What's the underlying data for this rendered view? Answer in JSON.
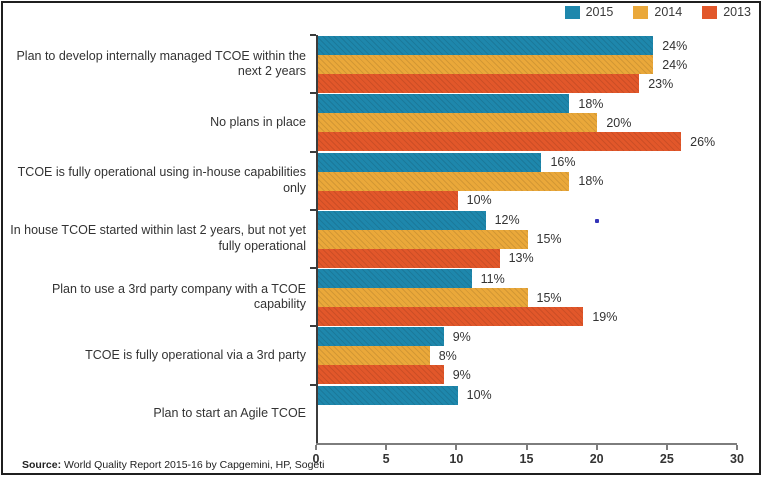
{
  "legend": [
    {
      "label": "2015",
      "color": "#1e87ac"
    },
    {
      "label": "2014",
      "color": "#eaa83a"
    },
    {
      "label": "2013",
      "color": "#e2572a"
    }
  ],
  "source": {
    "prefix": "Source:",
    "text": "World Quality Report 2015-16 by Capgemini, HP, Sogeti"
  },
  "chart_data": {
    "type": "bar",
    "orientation": "horizontal",
    "title": "",
    "categories": [
      "Plan to develop internally managed TCOE within the next 2 years",
      "No plans in place",
      "TCOE is fully operational using in-house capabilities only",
      "In house TCOE started within last 2 years, but not yet fully operational",
      "Plan to use a 3rd party company with a TCOE capability",
      "TCOE is fully operational via a 3rd party",
      "Plan to start an Agile TCOE"
    ],
    "series": [
      {
        "name": "2015",
        "color": "#1e87ac",
        "values": [
          24,
          18,
          16,
          12,
          11,
          9,
          10
        ]
      },
      {
        "name": "2014",
        "color": "#eaa83a",
        "values": [
          24,
          20,
          18,
          15,
          15,
          8,
          null
        ]
      },
      {
        "name": "2013",
        "color": "#e2572a",
        "values": [
          23,
          26,
          10,
          13,
          19,
          9,
          null
        ]
      }
    ],
    "value_suffix": "%",
    "xlabel": "",
    "ylabel": "",
    "xlim": [
      0,
      30
    ],
    "x_ticks": [
      0,
      5,
      10,
      15,
      20,
      25,
      30
    ],
    "legend_position": "top-right",
    "grid": false,
    "bar_texture": "diagonal-hatch"
  }
}
